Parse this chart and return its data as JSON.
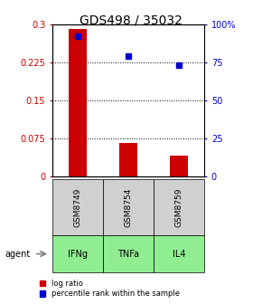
{
  "title": "GDS498 / 35032",
  "samples": [
    "GSM8749",
    "GSM8754",
    "GSM8759"
  ],
  "agents": [
    "IFNg",
    "TNFa",
    "IL4"
  ],
  "log_ratios": [
    0.29,
    0.065,
    0.04
  ],
  "percentile_ranks": [
    0.92,
    0.79,
    0.73
  ],
  "bar_color": "#cc0000",
  "point_color": "#0000cc",
  "left_ylim": [
    0,
    0.3
  ],
  "right_ylim": [
    0,
    1.0
  ],
  "left_yticks": [
    0,
    0.075,
    0.15,
    0.225,
    0.3
  ],
  "left_yticklabels": [
    "0",
    "0.075",
    "0.15",
    "0.225",
    "0.3"
  ],
  "right_yticks": [
    0,
    0.25,
    0.5,
    0.75,
    1.0
  ],
  "right_yticklabels": [
    "0",
    "25",
    "50",
    "75",
    "100%"
  ],
  "sample_box_color": "#d0d0d0",
  "agent_box_color": "#90ee90",
  "legend_log_ratio": "log ratio",
  "legend_percentile": "percentile rank within the sample",
  "agent_label": "agent"
}
